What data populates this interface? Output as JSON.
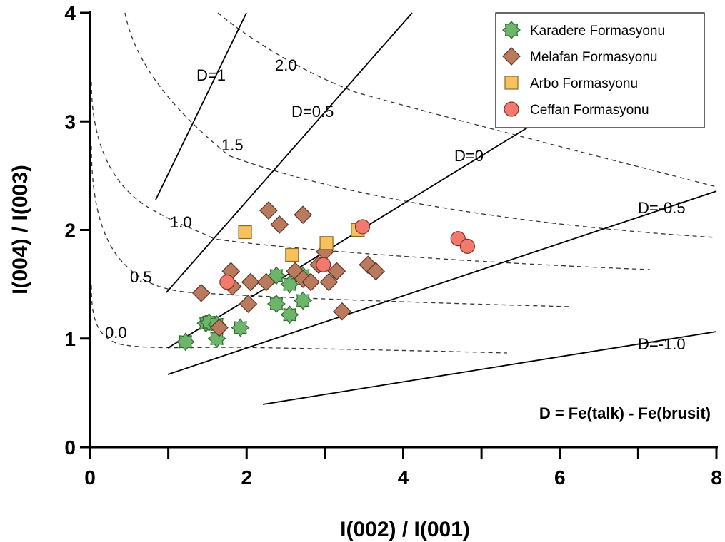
{
  "colors": {
    "karadere": "#6db56a",
    "karadere_stroke": "#2f6a2f",
    "melafan": "#b97a5e",
    "melafan_stroke": "#5a3424",
    "arbo": "#f6c15e",
    "arbo_stroke": "#8a6a20",
    "ceffan": "#f17a6e",
    "ceffan_stroke": "#8a2a22"
  },
  "chart_data": {
    "type": "scatter",
    "xlabel": "I(002) / I(001)",
    "ylabel": "I(004) / I(003)",
    "xlim": [
      0,
      8
    ],
    "ylim": [
      0,
      4
    ],
    "x_ticks": [
      "0",
      "2",
      "4",
      "6",
      "8"
    ],
    "y_ticks": [
      "0",
      "1",
      "2",
      "3",
      "4"
    ],
    "legend_position": "top-right",
    "formula": "D = Fe(talk) - Fe(brusit)",
    "series": [
      {
        "name": "Karadere Formasyonu",
        "marker": "star",
        "points": [
          [
            1.22,
            0.97
          ],
          [
            1.48,
            1.14
          ],
          [
            1.52,
            1.15
          ],
          [
            1.62,
            1.13
          ],
          [
            1.62,
            1.0
          ],
          [
            1.92,
            1.1
          ],
          [
            2.38,
            1.32
          ],
          [
            2.38,
            1.58
          ],
          [
            2.55,
            1.22
          ],
          [
            2.55,
            1.5
          ],
          [
            2.72,
            1.35
          ],
          [
            2.72,
            1.58
          ]
        ]
      },
      {
        "name": "Melafan Formasyonu",
        "marker": "diamond",
        "points": [
          [
            1.42,
            1.42
          ],
          [
            1.65,
            1.1
          ],
          [
            1.8,
            1.62
          ],
          [
            1.82,
            1.48
          ],
          [
            2.02,
            1.32
          ],
          [
            2.05,
            1.52
          ],
          [
            2.25,
            1.52
          ],
          [
            2.28,
            2.18
          ],
          [
            2.42,
            2.05
          ],
          [
            2.62,
            1.62
          ],
          [
            2.72,
            1.55
          ],
          [
            2.72,
            2.14
          ],
          [
            2.82,
            1.52
          ],
          [
            2.92,
            1.68
          ],
          [
            3.0,
            1.8
          ],
          [
            3.05,
            1.52
          ],
          [
            3.15,
            1.62
          ],
          [
            3.22,
            1.25
          ],
          [
            3.55,
            1.68
          ],
          [
            3.65,
            1.62
          ]
        ]
      },
      {
        "name": "Arbo Formasyonu",
        "marker": "square",
        "points": [
          [
            1.98,
            1.98
          ],
          [
            2.58,
            1.77
          ],
          [
            3.02,
            1.88
          ],
          [
            3.42,
            2.0
          ]
        ]
      },
      {
        "name": "Ceffan Formasyonu",
        "marker": "circle",
        "points": [
          [
            1.75,
            1.52
          ],
          [
            2.98,
            1.68
          ],
          [
            3.48,
            2.03
          ],
          [
            4.7,
            1.92
          ],
          [
            4.82,
            1.85
          ]
        ]
      }
    ],
    "annotations": {
      "d_lines": [
        "D=1",
        "D=0.5",
        "D=0",
        "D=-0.5",
        "D=-1.0"
      ],
      "curve_labels": [
        "0.0",
        "0.5",
        "1.0",
        "1.5",
        "2.0"
      ]
    }
  }
}
